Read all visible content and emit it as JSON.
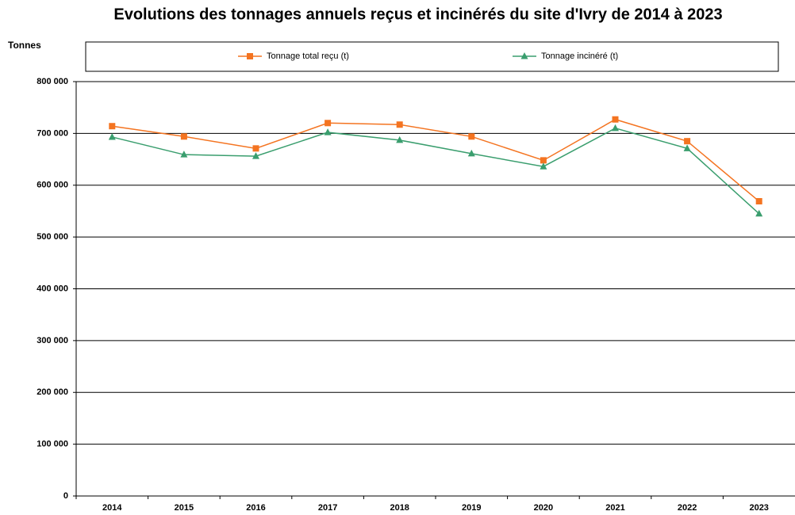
{
  "chart_data": {
    "type": "line",
    "title": "Evolutions des tonnages annuels reçus et incinérés du site d'Ivry de 2014 à 2023",
    "y_label": "Tonnes",
    "categories": [
      "2014",
      "2015",
      "2016",
      "2017",
      "2018",
      "2019",
      "2020",
      "2021",
      "2022",
      "2023"
    ],
    "series": [
      {
        "name": "Tonnage total reçu (t)",
        "color": "#f47421",
        "marker": "square",
        "values": [
          714000,
          694000,
          671000,
          720000,
          717000,
          694000,
          648000,
          727000,
          685000,
          569000
        ]
      },
      {
        "name": "Tonnage incinéré (t)",
        "color": "#3a9e6e",
        "marker": "triangle",
        "values": [
          693000,
          659000,
          656000,
          702000,
          687000,
          661000,
          636000,
          710000,
          671000,
          545000
        ]
      }
    ],
    "ylim": [
      0,
      800000
    ],
    "yticks": [
      0,
      {
        "value": 100000,
        "label": "100 000"
      },
      {
        "value": 200000,
        "label": "200 000"
      },
      {
        "value": 300000,
        "label": "300 000"
      },
      {
        "value": 400000,
        "label": "400 000"
      },
      {
        "value": 500000,
        "label": "500 000"
      },
      {
        "value": 600000,
        "label": "600 000"
      },
      {
        "value": 700000,
        "label": "700 000"
      },
      {
        "value": 800000,
        "label": "800 000"
      }
    ],
    "grid": true,
    "legend": "top"
  }
}
